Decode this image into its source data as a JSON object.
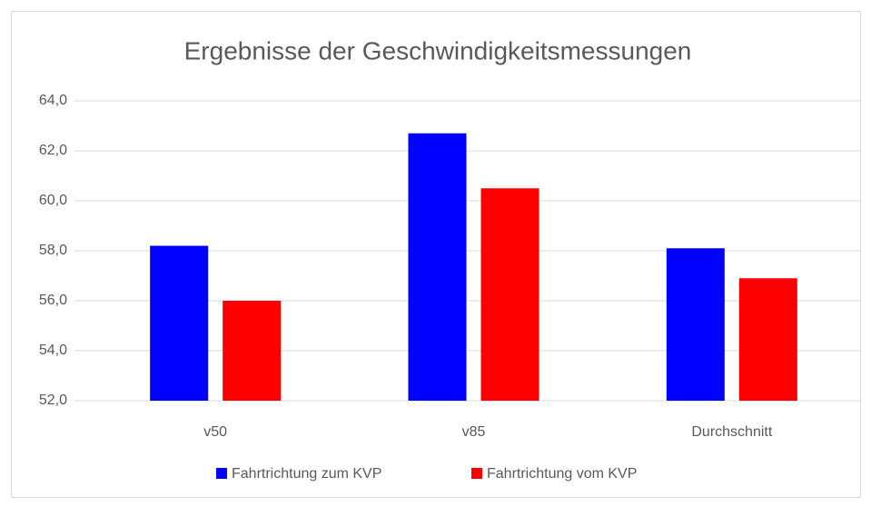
{
  "chart_data": {
    "type": "bar",
    "title": "Ergebnisse der Geschwindigkeitsmessungen",
    "categories": [
      "v50",
      "v85",
      "Durchschnitt"
    ],
    "series": [
      {
        "name": "Fahrtrichtung zum KVP",
        "color": "#0000ff",
        "values": [
          58.2,
          62.7,
          58.1
        ]
      },
      {
        "name": "Fahrtrichtung vom KVP",
        "color": "#ff0000",
        "values": [
          56.0,
          60.5,
          56.9
        ]
      }
    ],
    "ylim": [
      52,
      64
    ],
    "yticks": [
      {
        "value": 52,
        "label": "52,0"
      },
      {
        "value": 54,
        "label": "54,0"
      },
      {
        "value": 56,
        "label": "56,0"
      },
      {
        "value": 58,
        "label": "58,0"
      },
      {
        "value": 60,
        "label": "60,0"
      },
      {
        "value": 62,
        "label": "62,0"
      },
      {
        "value": 64,
        "label": "64,0"
      }
    ],
    "grid": true,
    "legend": "bottom"
  }
}
